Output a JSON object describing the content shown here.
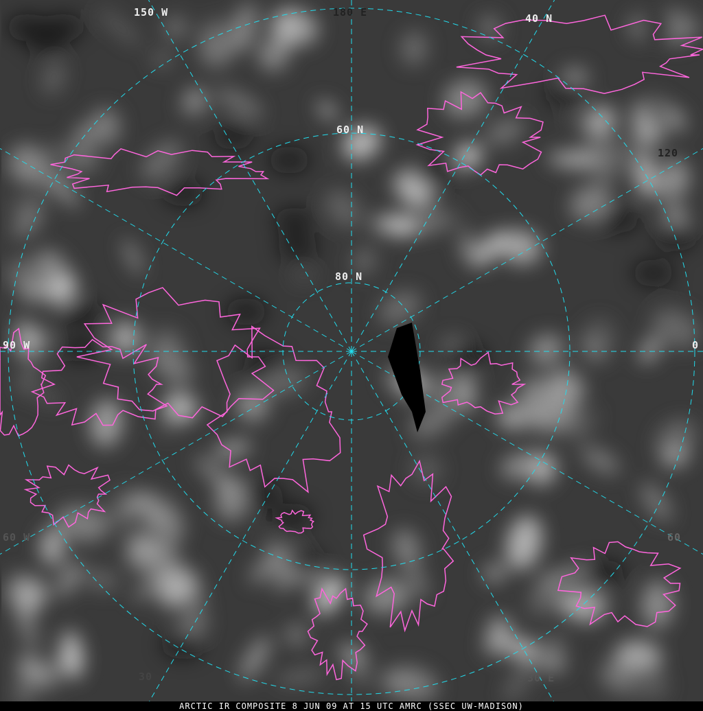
{
  "caption": "ARCTIC IR COMPOSITE 8 JUN 09 AT 15 UTC AMRC (SSEC UW-MADISON)",
  "projection": "polar-stereographic",
  "colors": {
    "coastline": "#ff66dd",
    "graticule": "#22ddee",
    "background": "#3a3a3a"
  },
  "labels": {
    "lon_150w": "150 W",
    "lon_180e": "180 E",
    "lat_40n": "40 N",
    "lat_60n": "60 N",
    "lat_80n": "80 N",
    "lon_120": "120",
    "lon_90w": "90 W",
    "lon_0": "0",
    "lon_60w": "60 W",
    "lon_60": "60",
    "lon_30": "30",
    "lon_30e": "30 E"
  }
}
